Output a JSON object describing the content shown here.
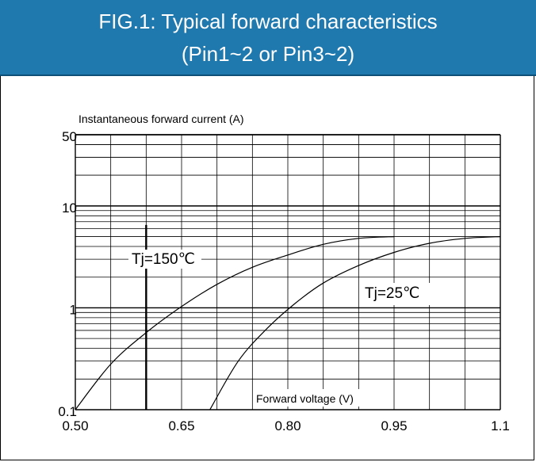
{
  "header": {
    "line1": "FIG.1: Typical forward characteristics",
    "line2": "(Pin1~2 or Pin3~2)"
  },
  "colors": {
    "header_bg": "#1f78ae",
    "line": "#000000"
  },
  "chart_data": {
    "type": "line",
    "title": "FIG.1: Typical forward characteristics (Pin1~2 or Pin3~2)",
    "xlabel": "Forward voltage (V)",
    "ylabel": "Instantaneous forward current (A)",
    "xlim": [
      0.5,
      1.1
    ],
    "ylim": [
      0.1,
      50
    ],
    "yscale": "log",
    "grid": true,
    "x_ticks": [
      "0.50",
      "0.65",
      "0.80",
      "0.95",
      "1.1"
    ],
    "y_ticks": [
      "0.1",
      "1",
      "10",
      "50"
    ],
    "series": [
      {
        "name": "Tj=150℃",
        "x": [
          0.5,
          0.55,
          0.6,
          0.65,
          0.7,
          0.75,
          0.8,
          0.85,
          0.9,
          0.95
        ],
        "y": [
          0.1,
          0.28,
          0.57,
          1.03,
          1.7,
          2.5,
          3.3,
          4.2,
          4.8,
          5.0
        ]
      },
      {
        "name": "Tj=25℃",
        "x": [
          0.69,
          0.73,
          0.77,
          0.81,
          0.85,
          0.9,
          0.95,
          1.0,
          1.05,
          1.1
        ],
        "y": [
          0.1,
          0.3,
          0.62,
          1.1,
          1.75,
          2.6,
          3.5,
          4.3,
          4.8,
          5.0
        ]
      }
    ]
  }
}
